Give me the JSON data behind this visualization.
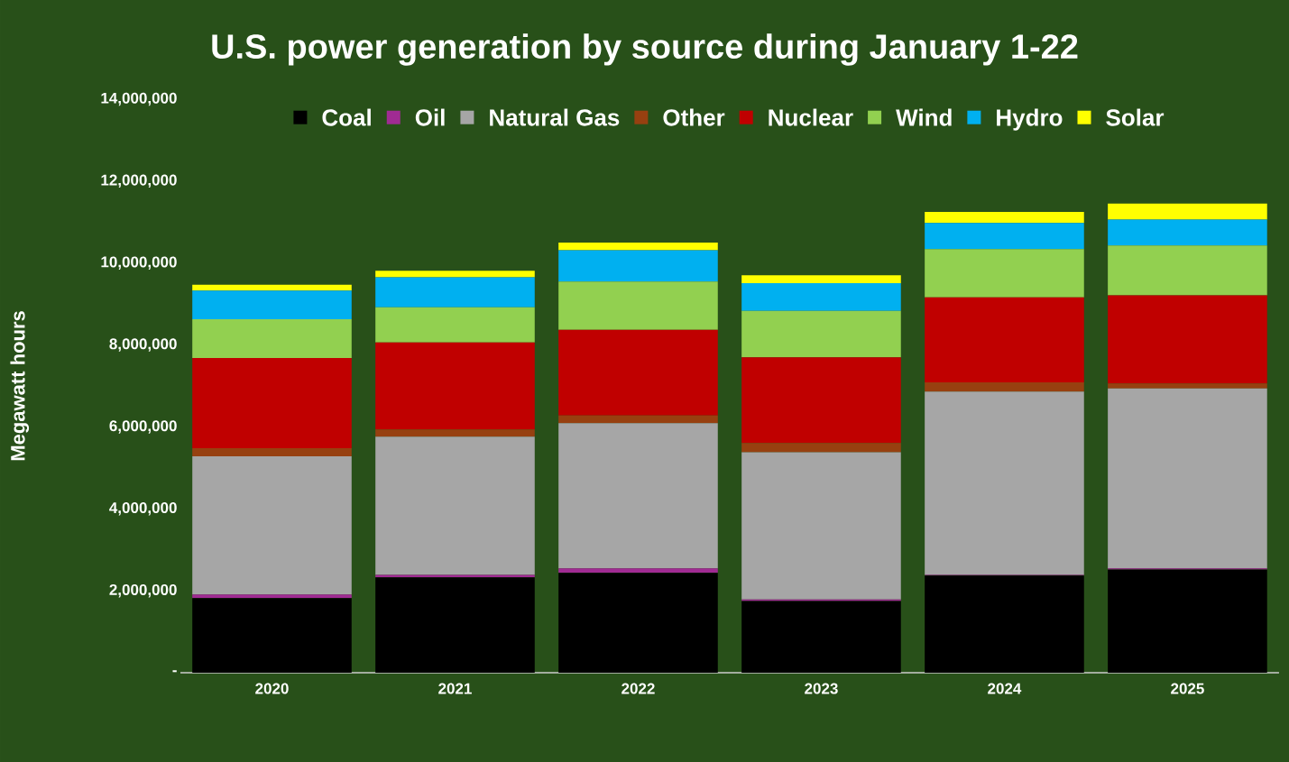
{
  "chart_data": {
    "type": "bar",
    "title": "U.S. power generation by source during January 1-22",
    "ylabel": "Megawatt hours",
    "categories": [
      "2020",
      "2021",
      "2022",
      "2023",
      "2024",
      "2025"
    ],
    "stacked": true,
    "legend": "top",
    "ylim": [
      0,
      14000000
    ],
    "yticks": [
      {
        "value": 0,
        "label": "-"
      },
      {
        "value": 2000000,
        "label": "2,000,000"
      },
      {
        "value": 4000000,
        "label": "4,000,000"
      },
      {
        "value": 6000000,
        "label": "6,000,000"
      },
      {
        "value": 8000000,
        "label": "8,000,000"
      },
      {
        "value": 10000000,
        "label": "10,000,000"
      },
      {
        "value": 12000000,
        "label": "12,000,000"
      },
      {
        "value": 14000000,
        "label": "14,000,000"
      }
    ],
    "series": [
      {
        "name": "Coal",
        "color": "#000000",
        "values": [
          1820000,
          2330000,
          2440000,
          1750000,
          2370000,
          2520000
        ]
      },
      {
        "name": "Oil",
        "color": "#a02b93",
        "values": [
          90000,
          60000,
          110000,
          40000,
          20000,
          30000
        ]
      },
      {
        "name": "Natural Gas",
        "color": "#a6a6a6",
        "values": [
          3370000,
          3370000,
          3540000,
          3590000,
          4470000,
          4390000
        ]
      },
      {
        "name": "Other",
        "color": "#974010",
        "values": [
          200000,
          180000,
          190000,
          230000,
          230000,
          120000
        ]
      },
      {
        "name": "Nuclear",
        "color": "#c00000",
        "values": [
          2200000,
          2120000,
          2090000,
          2090000,
          2070000,
          2150000
        ]
      },
      {
        "name": "Wind",
        "color": "#92d050",
        "values": [
          950000,
          860000,
          1180000,
          1130000,
          1180000,
          1220000
        ]
      },
      {
        "name": "Hydro",
        "color": "#00b0f0",
        "values": [
          700000,
          730000,
          760000,
          680000,
          640000,
          630000
        ]
      },
      {
        "name": "Solar",
        "color": "#ffff00",
        "values": [
          140000,
          160000,
          190000,
          190000,
          270000,
          390000
        ]
      }
    ]
  }
}
